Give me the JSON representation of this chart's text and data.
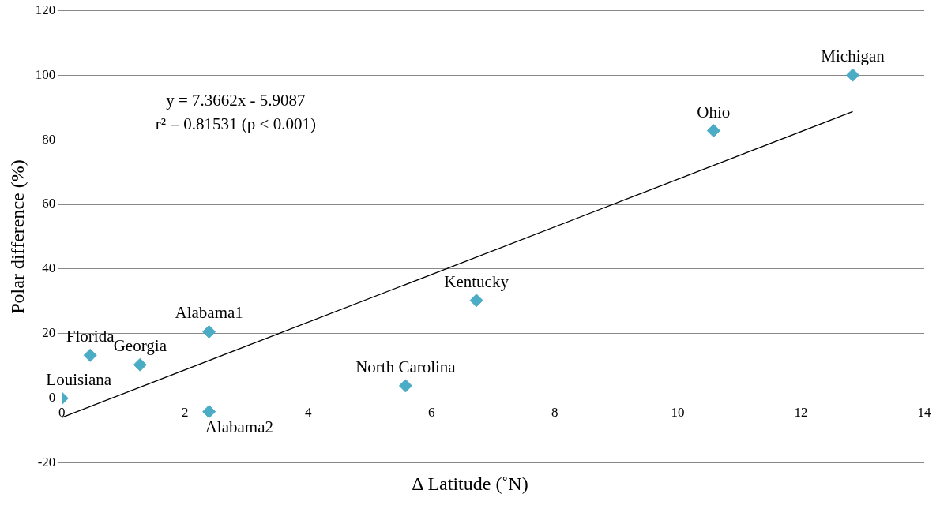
{
  "chart_data": {
    "type": "scatter",
    "xlabel": "Δ Latitude (˚N)",
    "ylabel": "Polar difference (%)",
    "x": [
      0,
      0.46,
      1.27,
      2.39,
      2.39,
      5.58,
      6.73,
      10.58,
      12.84
    ],
    "series": [
      {
        "type": "scatter",
        "color": "#4bacc6",
        "marker": "diamond",
        "values": [
          0,
          13.3,
          10.4,
          20.6,
          -4.1,
          3.9,
          30.3,
          82.8,
          100
        ]
      },
      {
        "type": "line",
        "color": "#000000",
        "x": [
          0,
          12.84
        ],
        "values": [
          -5.9,
          88.7
        ],
        "marker": "none"
      }
    ],
    "xlim": [
      0,
      14
    ],
    "xticks": [
      0,
      2,
      4,
      6,
      8,
      10,
      12,
      14
    ],
    "ylim": [
      -20,
      120
    ],
    "yticks": [
      -20,
      0,
      20,
      40,
      60,
      80,
      100,
      120
    ],
    "grid": "y",
    "legend": false,
    "annotations": [
      "y = 7.3662x - 5.9087",
      "r² = 0.81531 (p < 0.001)",
      {
        "text": "Louisiana",
        "x": 0,
        "y": 0
      },
      {
        "text": "Florida",
        "x": 0.46,
        "y": 13.3
      },
      {
        "text": "Georgia",
        "x": 1.27,
        "y": 10.4
      },
      {
        "text": "Alabama1",
        "x": 2.39,
        "y": 20.6
      },
      {
        "text": "Alabama2",
        "x": 2.39,
        "y": -4.1
      },
      {
        "text": "North Carolina",
        "x": 5.58,
        "y": 3.9
      },
      {
        "text": "Kentucky",
        "x": 6.73,
        "y": 30.3
      },
      {
        "text": "Ohio",
        "x": 10.58,
        "y": 82.8
      },
      {
        "text": "Michigan",
        "x": 12.84,
        "y": 100
      }
    ]
  }
}
